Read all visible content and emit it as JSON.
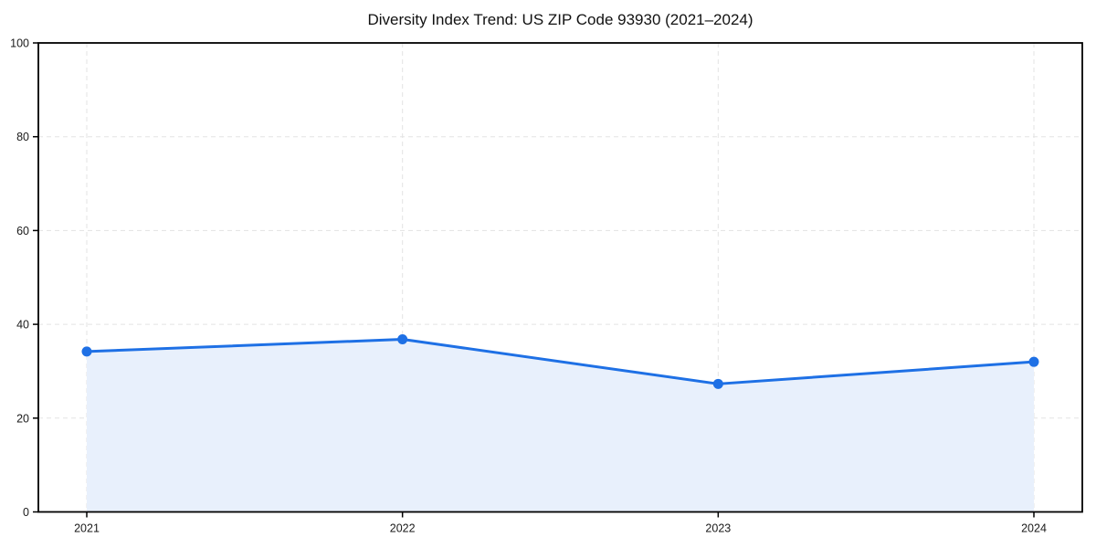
{
  "title": "Diversity Index Trend: US ZIP Code 93930 (2021–2024)",
  "chart_data": {
    "type": "area",
    "title": "Diversity Index Trend: US ZIP Code 93930 (2021–2024)",
    "categories": [
      "2021",
      "2022",
      "2023",
      "2024"
    ],
    "series": [
      {
        "name": "Diversity Index",
        "values": [
          34.2,
          36.8,
          27.3,
          32.0
        ]
      }
    ],
    "xlabel": "",
    "ylabel": "",
    "ylim": [
      0,
      100
    ],
    "yticks": [
      0,
      20,
      40,
      60,
      80,
      100
    ],
    "grid": true,
    "grid_style": "dashed",
    "legend_position": "none",
    "colors": {
      "line": "#1e70e5",
      "marker": "#1e70e5",
      "fill": "#e8f0fc",
      "grid": "#e3e3e3",
      "spine": "#000000",
      "tick_text": "#1a1a1a",
      "background": "#ffffff"
    }
  }
}
